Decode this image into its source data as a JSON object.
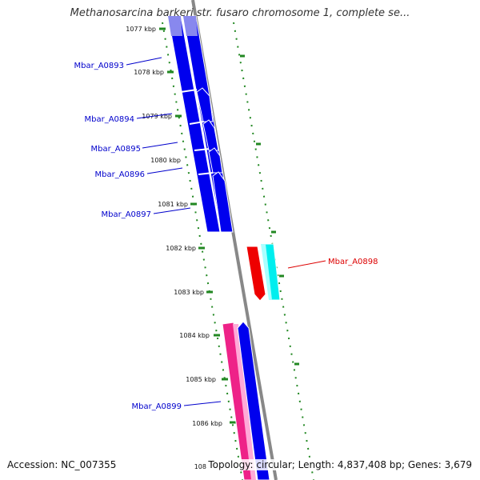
{
  "title": "Methanosarcina barkeri str. fusaro chromosome 1, complete se...",
  "footer": {
    "accession": "Accession: NC_007355",
    "topology": "Topology: circular; Length: 4,837,408 bp; Genes: 3,679"
  },
  "ticks": [
    "1077 kbp",
    "1078 kbp",
    "1079 kbp",
    "1080 kbp",
    "1081 kbp",
    "1082 kbp",
    "1083 kbp",
    "1084 kbp",
    "1085 kbp",
    "1086 kbp",
    "108"
  ],
  "gene_labels": [
    {
      "text": "Mbar_A0893",
      "color": "#0000cc"
    },
    {
      "text": "Mbar_A0894",
      "color": "#0000cc"
    },
    {
      "text": "Mbar_A0895",
      "color": "#0000cc"
    },
    {
      "text": "Mbar_A0896",
      "color": "#0000cc"
    },
    {
      "text": "Mbar_A0897",
      "color": "#0000cc"
    },
    {
      "text": "Mbar_A0898",
      "color": "#dd0000"
    },
    {
      "text": "Mbar_A0899",
      "color": "#0000cc"
    }
  ],
  "colors": {
    "cds_blue": "#0000ee",
    "cds_red": "#ee0000",
    "cds_cyan": "#00eeee",
    "cds_pink": "#ee2288",
    "backbone": "#888888",
    "dotted_track": "#228822"
  }
}
